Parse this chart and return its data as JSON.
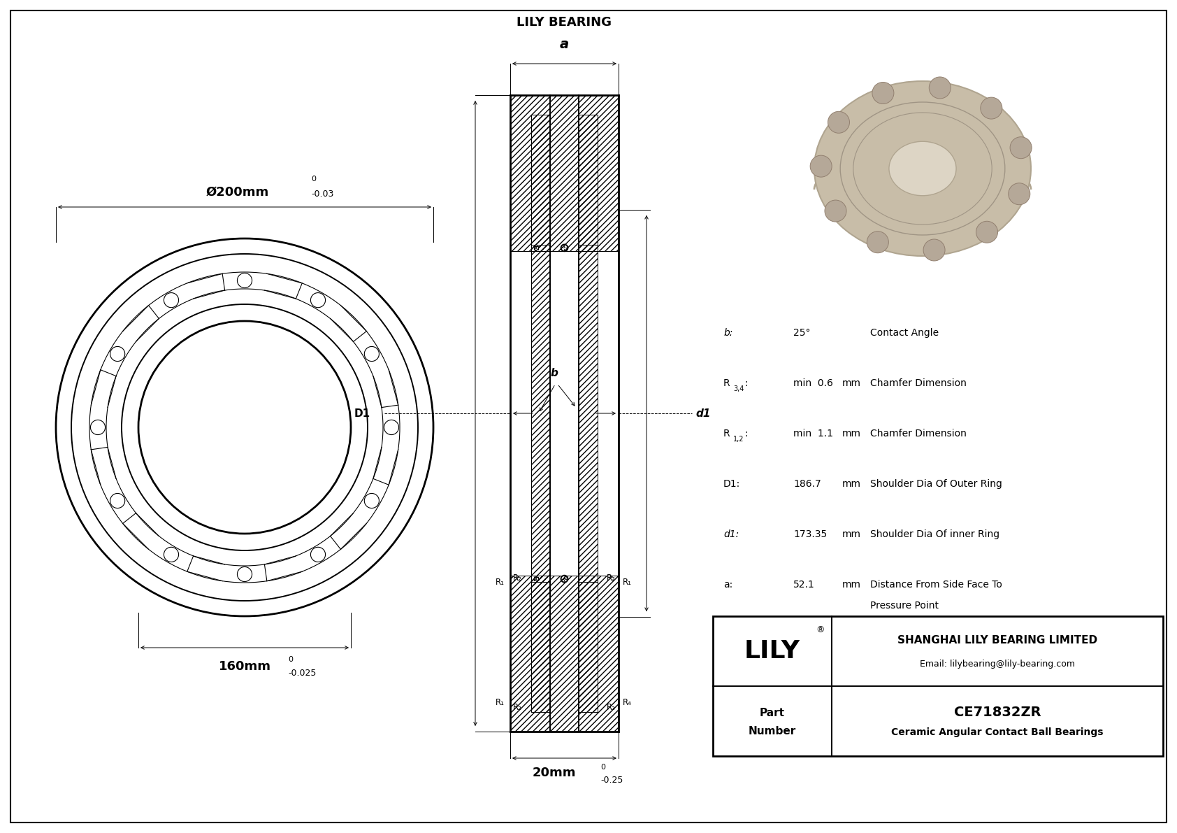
{
  "bg_color": "#ffffff",
  "title": "CE71832ZR",
  "subtitle": "Ceramic Angular Contact Ball Bearings",
  "company": "SHANGHAI LILY BEARING LIMITED",
  "email": "Email: lilybearing@lily-bearing.com",
  "lily_text": "LILY",
  "brand_label": "LILY BEARING",
  "dim_outer": "Ø200mm",
  "dim_outer_tol": "-0.03",
  "dim_outer_sup": "0",
  "dim_inner": "160mm",
  "dim_inner_tol": "-0.025",
  "dim_inner_sup": "0",
  "dim_width": "20mm",
  "dim_width_tol": "-0.25",
  "dim_width_sup": "0",
  "spec_rows": [
    {
      "label": "b:",
      "value": "25°",
      "unit": "",
      "desc": "Contact Angle",
      "desc2": ""
    },
    {
      "label": "R3,4:",
      "value": "min  0.6",
      "unit": "mm",
      "desc": "Chamfer Dimension",
      "desc2": ""
    },
    {
      "label": "R1,2:",
      "value": "min  1.1",
      "unit": "mm",
      "desc": "Chamfer Dimension",
      "desc2": ""
    },
    {
      "label": "D1:",
      "value": "186.7",
      "unit": "mm",
      "desc": "Shoulder Dia Of Outer Ring",
      "desc2": ""
    },
    {
      "label": "d1:",
      "value": "173.35",
      "unit": "mm",
      "desc": "Shoulder Dia Of inner Ring",
      "desc2": ""
    },
    {
      "label": "a:",
      "value": "52.1",
      "unit": "mm",
      "desc": "Distance From Side Face To",
      "desc2": "Pressure Point"
    }
  ]
}
